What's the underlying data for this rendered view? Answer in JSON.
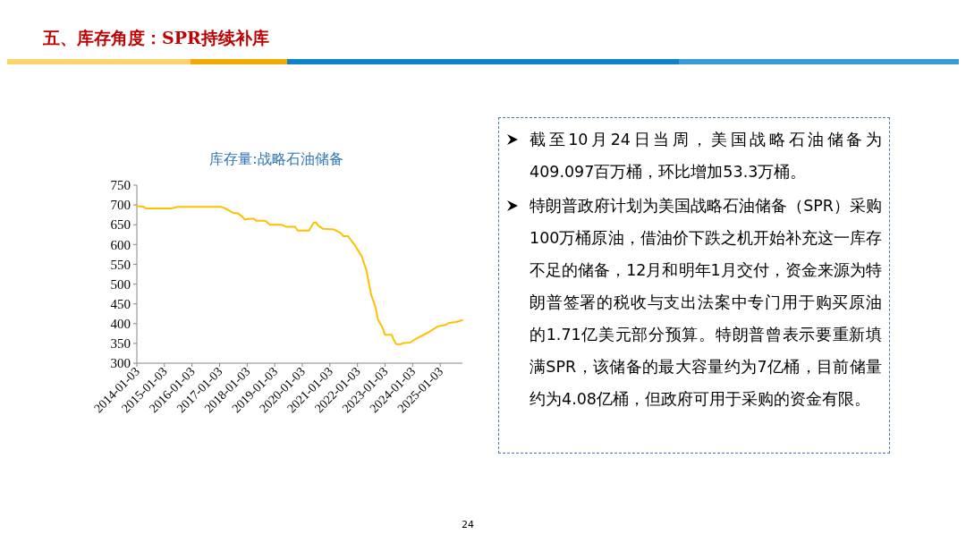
{
  "chart_data": [
    {
      "type": "line",
      "title": "库存量:战略石油储备",
      "annotations": [
        "五、库存角度：SPR持续补库",
        "24"
      ],
      "x": [
        "2014-01-03",
        "2014-04",
        "2014-05",
        "2015-04",
        "2015-07",
        "2017-02",
        "2017-04",
        "2017-07",
        "2017-09",
        "2017-11",
        "2017-12",
        "2018-02",
        "2018-04",
        "2018-05",
        "2018-09",
        "2018-11",
        "2019-04",
        "2019-06",
        "2019-10",
        "2019-11",
        "2020-04",
        "2020-06",
        "2020-07",
        "2020-08",
        "2020-10",
        "2021-03",
        "2021-06",
        "2021-07",
        "2021-09",
        "2021-10",
        "2021-12",
        "2022-01",
        "2022-03",
        "2022-05",
        "2022-07",
        "2022-09",
        "2022-10",
        "2022-12",
        "2023-01",
        "2023-04",
        "2023-05",
        "2023-06",
        "2023-08",
        "2023-09",
        "2023-12",
        "2024-02",
        "2024-08",
        "2024-12",
        "2025-03",
        "2025-05",
        "2025-08",
        "2025-10-24"
      ],
      "series": [
        {
          "color": "#ffc000",
          "values": [
            697,
            696,
            691,
            691,
            695,
            695,
            690,
            680,
            679,
            670,
            663,
            665,
            665,
            660,
            660,
            650,
            650,
            645,
            645,
            635,
            635,
            655,
            656,
            648,
            640,
            638,
            628,
            621,
            621,
            613,
            598,
            588,
            570,
            535,
            475,
            440,
            410,
            390,
            372,
            372,
            358,
            348,
            348,
            351,
            352,
            360,
            378,
            393,
            396,
            402,
            404,
            409
          ]
        }
      ],
      "xlim": [
        "2014-01-03",
        "2025-10-24"
      ],
      "xticks": [
        "2014-01-03",
        "2015-01-03",
        "2016-01-03",
        "2017-01-03",
        "2018-01-03",
        "2019-01-03",
        "2020-01-03",
        "2021-01-03",
        "2022-01-03",
        "2023-01-03",
        "2024-01-03",
        "2025-01-03"
      ],
      "ylim": [
        300,
        750
      ],
      "yticks": [
        300,
        350,
        400,
        450,
        500,
        550,
        600,
        650,
        700,
        750
      ],
      "grid": false,
      "marker": "none",
      "line_style": "solid"
    },
    {
      "type": "other",
      "annotations": [
        "截至10月24日当周，美国战略石油储备为409.097百万桶，环比增加53.3万桶。",
        "特朗普政府计划为美国战略石油储备（SPR）采购100万桶原油，借油价下跌之机开始补充这一库存不足的储备，12月和明年1月交付，资金来源为特朗普签署的税收与支出法案中专门用于购买原油的1.71亿美元部分预算。特朗普曾表示要重新填满SPR，该储备的最大容量约为7亿桶，目前储量约为4.08亿桶，但政府可用于采购的资金有限。"
      ]
    }
  ]
}
